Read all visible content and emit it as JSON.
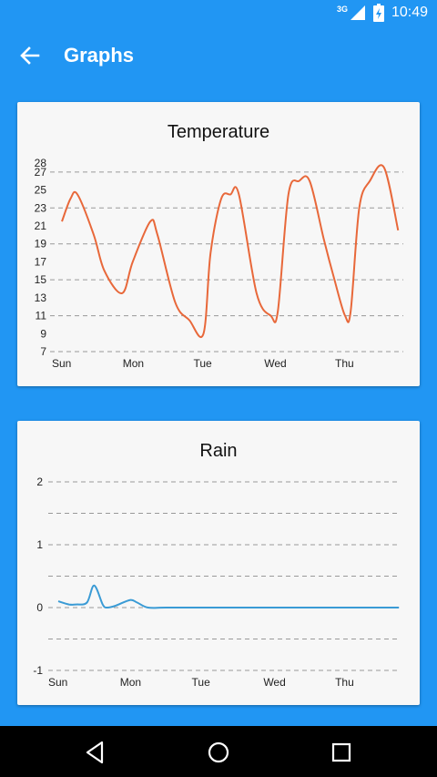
{
  "status_bar": {
    "network": "3G",
    "time": "10:49",
    "icons": [
      "signal-icon",
      "battery-icon"
    ]
  },
  "app_bar": {
    "title": "Graphs",
    "back_icon": "arrow-back-icon",
    "background": "#2196F3"
  },
  "charts": {
    "temperature": {
      "title": "Temperature",
      "line_color": "#E8683A"
    },
    "rain": {
      "title": "Rain",
      "line_color": "#3A9BD5"
    }
  },
  "nav_bar": {
    "icons": [
      "back-triangle-icon",
      "home-circle-icon",
      "recents-square-icon"
    ]
  },
  "chart_data": [
    {
      "type": "line",
      "title": "Temperature",
      "xlabel": "",
      "ylabel": "",
      "x_ticks": [
        "Sun",
        "Mon",
        "Tue",
        "Wed",
        "Thu"
      ],
      "x_range": [
        0,
        4.9
      ],
      "y_ticks": [
        7,
        9,
        11,
        13,
        15,
        17,
        19,
        21,
        23,
        25,
        27,
        28
      ],
      "ylim": [
        7,
        28
      ],
      "grid": "dashed horizontal",
      "series": [
        {
          "x": [
            0,
            0.12,
            0.22,
            0.45,
            0.6,
            0.85,
            1.0,
            1.25,
            1.35,
            1.6,
            1.8,
            2.0,
            2.1,
            2.25,
            2.38,
            2.5,
            2.75,
            2.95,
            3.05,
            3.2,
            3.35,
            3.5,
            3.7,
            3.85,
            4.0,
            4.08,
            4.2,
            4.35,
            4.55,
            4.75
          ],
          "y": [
            21.5,
            24,
            24.5,
            20,
            16,
            13.5,
            17,
            21.5,
            20,
            12.5,
            10.5,
            9,
            18,
            24,
            24.5,
            24.5,
            13.5,
            11,
            11.5,
            24.5,
            26,
            26,
            19.5,
            15,
            11,
            11.5,
            23,
            26,
            27.5,
            20.5
          ]
        }
      ]
    },
    {
      "type": "line",
      "title": "Rain",
      "xlabel": "",
      "ylabel": "",
      "x_ticks": [
        "Sun",
        "Mon",
        "Tue",
        "Wed",
        "Thu"
      ],
      "x_range": [
        0,
        4.9
      ],
      "y_ticks": [
        2,
        1,
        0,
        -1
      ],
      "ylim": [
        -1,
        2
      ],
      "grid": "dashed horizontal",
      "series": [
        {
          "x": [
            0,
            0.15,
            0.25,
            0.4,
            0.5,
            0.62,
            0.68,
            0.8,
            1.0,
            1.1,
            1.25,
            1.5,
            2.0,
            3.0,
            4.0,
            4.75
          ],
          "y": [
            0.1,
            0.05,
            0.05,
            0.08,
            0.35,
            0.05,
            0.0,
            0.03,
            0.12,
            0.08,
            0.0,
            0.0,
            0.0,
            0.0,
            0.0,
            0.0
          ]
        }
      ]
    }
  ]
}
